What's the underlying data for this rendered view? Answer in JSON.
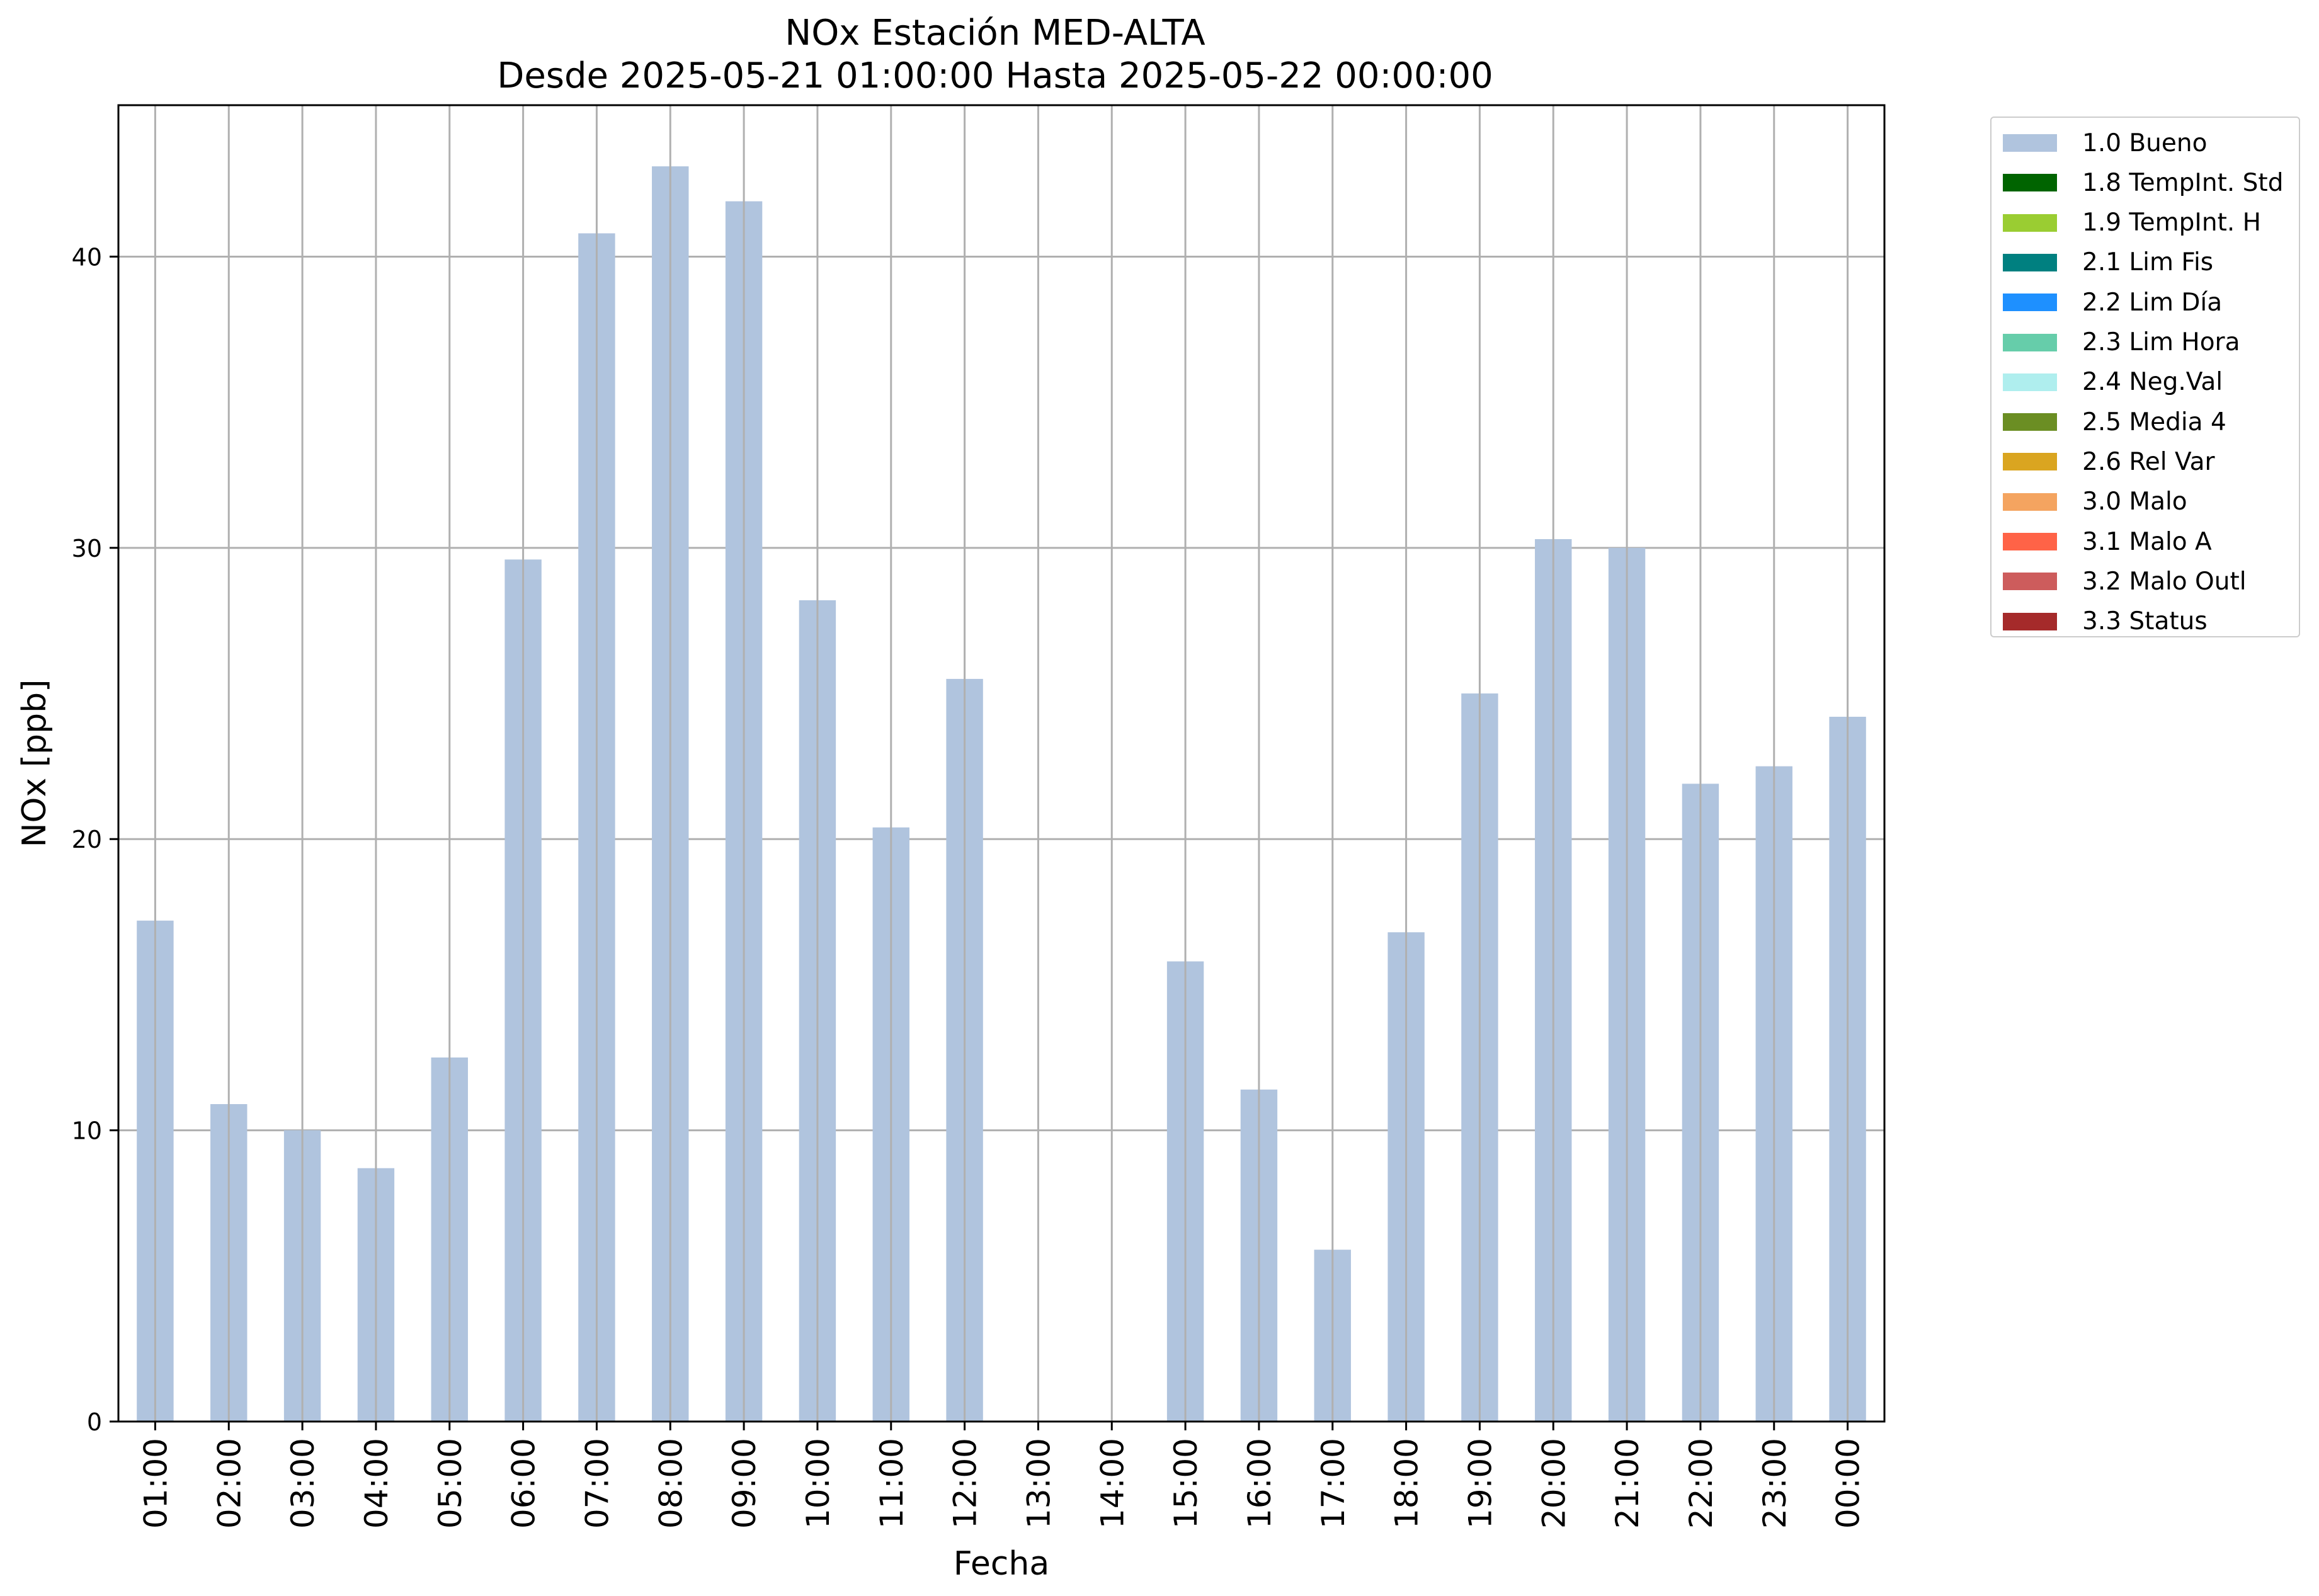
{
  "chart_data": {
    "type": "bar",
    "title": "NOx Estación MED-ALTA",
    "subtitle": "Desde 2025-05-21 01:00:00 Hasta 2025-05-22 00:00:00",
    "xlabel": "Fecha",
    "ylabel": "NOx [ppb]",
    "ylim": [
      0,
      45.2
    ],
    "yticks": [
      0,
      10,
      20,
      30,
      40
    ],
    "grid": true,
    "legend_position": "outside-top-right",
    "categories": [
      "01:00",
      "02:00",
      "03:00",
      "04:00",
      "05:00",
      "06:00",
      "07:00",
      "08:00",
      "09:00",
      "10:00",
      "11:00",
      "12:00",
      "13:00",
      "14:00",
      "15:00",
      "16:00",
      "17:00",
      "18:00",
      "19:00",
      "20:00",
      "21:00",
      "22:00",
      "23:00",
      "00:00"
    ],
    "series": [
      {
        "name": "1.0 Bueno",
        "color": "#b0c4de",
        "values": [
          17.2,
          10.9,
          10.0,
          8.7,
          12.5,
          29.6,
          40.8,
          43.1,
          41.9,
          28.2,
          20.4,
          25.5,
          null,
          null,
          15.8,
          11.4,
          5.9,
          16.8,
          25.0,
          30.3,
          30.0,
          21.9,
          22.5,
          24.2
        ]
      }
    ],
    "legend": [
      {
        "label": "1.0 Bueno",
        "color": "#b0c4de"
      },
      {
        "label": "1.8 TempInt. Std",
        "color": "#006400"
      },
      {
        "label": "1.9 TempInt. H",
        "color": "#9acd32"
      },
      {
        "label": "2.1 Lim Fis",
        "color": "#008080"
      },
      {
        "label": "2.2 Lim Día",
        "color": "#1e90ff"
      },
      {
        "label": "2.3 Lim Hora",
        "color": "#66cdaa"
      },
      {
        "label": "2.4 Neg.Val",
        "color": "#afeeee"
      },
      {
        "label": "2.5 Media 4",
        "color": "#6b8e23"
      },
      {
        "label": "2.6 Rel Var",
        "color": "#daa520"
      },
      {
        "label": "3.0 Malo",
        "color": "#f4a460"
      },
      {
        "label": "3.1 Malo A",
        "color": "#ff6347"
      },
      {
        "label": "3.2 Malo Outl",
        "color": "#cd5c5c"
      },
      {
        "label": "3.3 Status",
        "color": "#a52a2a"
      }
    ]
  }
}
